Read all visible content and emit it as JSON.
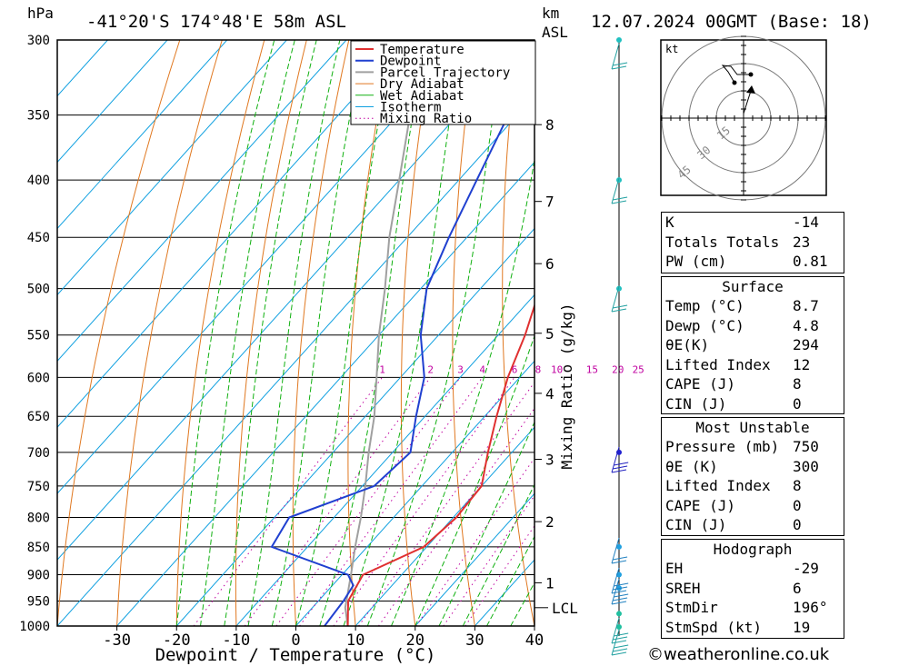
{
  "header": {
    "hpa_unit": "hPa",
    "location": "-41°20'S 174°48'E 58m ASL",
    "km_unit": "km",
    "asl_unit": "ASL",
    "datetime": "12.07.2024 00GMT (Base: 18)"
  },
  "colors": {
    "temperature": "#e03030",
    "dewpoint": "#2040d0",
    "parcel": "#a0a0a0",
    "dry_adiabat": "#e07820",
    "wet_adiabat": "#10b010",
    "isotherm": "#10a0e0",
    "mixing_ratio": "#c000a0"
  },
  "chart_data": {
    "type": "line",
    "xlabel": "Dewpoint / Temperature (°C)",
    "ylabel_left": "hPa",
    "ylabel_right": "Mixing Ratio (g/kg)",
    "xlim": [
      -40,
      40
    ],
    "x_ticks": [
      "-30",
      "-20",
      "-10",
      "0",
      "10",
      "20",
      "30",
      "40"
    ],
    "x_tick_values": [
      -30,
      -20,
      -10,
      0,
      10,
      20,
      30,
      40
    ],
    "pressure_levels": [
      300,
      350,
      400,
      450,
      500,
      550,
      600,
      650,
      700,
      750,
      800,
      850,
      900,
      950,
      1000
    ],
    "pressure_labels": [
      "300",
      "350",
      "400",
      "450",
      "500",
      "550",
      "600",
      "650",
      "700",
      "750",
      "800",
      "850",
      "900",
      "950",
      "1000"
    ],
    "km_ticks": [
      {
        "label": "8",
        "p": 357
      },
      {
        "label": "7",
        "p": 418
      },
      {
        "label": "6",
        "p": 475
      },
      {
        "label": "5",
        "p": 548
      },
      {
        "label": "4",
        "p": 620
      },
      {
        "label": "3",
        "p": 710
      },
      {
        "label": "2",
        "p": 807
      },
      {
        "label": "1",
        "p": 915
      }
    ],
    "lcl": {
      "label": "LCL",
      "p": 963
    },
    "mixing_ratio_labels": [
      "1",
      "2",
      "3",
      "4",
      "6",
      "8",
      "10",
      "15",
      "20",
      "25"
    ],
    "mixing_ratio_values": [
      1,
      2,
      3,
      4,
      6,
      8,
      10,
      15,
      20,
      25
    ],
    "legend": [
      "Temperature",
      "Dewpoint",
      "Parcel Trajectory",
      "Dry Adiabat",
      "Wet Adiabat",
      "Isotherm",
      "Mixing Ratio"
    ],
    "legend_position": "top-right",
    "series": [
      {
        "name": "Temperature",
        "points": [
          [
            1000,
            8.7
          ],
          [
            950,
            5
          ],
          [
            900,
            3.5
          ],
          [
            850,
            9.5
          ],
          [
            800,
            10.5
          ],
          [
            750,
            10
          ],
          [
            700,
            6
          ],
          [
            650,
            2
          ],
          [
            600,
            -2
          ],
          [
            550,
            -5.5
          ],
          [
            500,
            -10
          ],
          [
            450,
            -15.5
          ],
          [
            400,
            -21.5
          ],
          [
            350,
            -28
          ],
          [
            300,
            -34.5
          ]
        ]
      },
      {
        "name": "Dewpoint",
        "points": [
          [
            1000,
            4.8
          ],
          [
            950,
            4.2
          ],
          [
            920,
            3.5
          ],
          [
            900,
            1
          ],
          [
            850,
            -16
          ],
          [
            800,
            -17.5
          ],
          [
            750,
            -8
          ],
          [
            700,
            -7
          ],
          [
            650,
            -11.5
          ],
          [
            600,
            -16
          ],
          [
            550,
            -23
          ],
          [
            500,
            -29
          ],
          [
            450,
            -33
          ],
          [
            400,
            -37
          ],
          [
            350,
            -41.5
          ],
          [
            300,
            -46
          ]
        ]
      },
      {
        "name": "Parcel Trajectory",
        "points": [
          [
            1000,
            8.7
          ],
          [
            963,
            5.5
          ],
          [
            900,
            1.5
          ],
          [
            850,
            -2
          ],
          [
            800,
            -5.5
          ],
          [
            750,
            -9.5
          ],
          [
            700,
            -14
          ],
          [
            650,
            -18.5
          ],
          [
            600,
            -24
          ],
          [
            550,
            -30
          ],
          [
            500,
            -36
          ],
          [
            450,
            -43
          ],
          [
            400,
            -50
          ],
          [
            350,
            -58
          ],
          [
            300,
            -66
          ]
        ]
      }
    ]
  },
  "hodograph": {
    "unit": "kt",
    "ring_labels": [
      "15",
      "30",
      "45"
    ]
  },
  "indices": {
    "k_label": "K",
    "k_value": "-14",
    "tt_label": "Totals Totals",
    "tt_value": "23",
    "pw_label": "PW (cm)",
    "pw_value": "0.81"
  },
  "surface": {
    "title": "Surface",
    "rows": [
      {
        "label": "Temp (°C)",
        "value": "8.7"
      },
      {
        "label": "Dewp (°C)",
        "value": "4.8"
      },
      {
        "label": "θE(K)",
        "value": "294"
      },
      {
        "label": "Lifted Index",
        "value": "12"
      },
      {
        "label": "CAPE (J)",
        "value": "8"
      },
      {
        "label": "CIN (J)",
        "value": "0"
      }
    ]
  },
  "most_unstable": {
    "title": "Most Unstable",
    "rows": [
      {
        "label": "Pressure (mb)",
        "value": "750"
      },
      {
        "label": "θE (K)",
        "value": "300"
      },
      {
        "label": "Lifted Index",
        "value": "8"
      },
      {
        "label": "CAPE (J)",
        "value": "0"
      },
      {
        "label": "CIN (J)",
        "value": "0"
      }
    ]
  },
  "hodograph_table": {
    "title": "Hodograph",
    "rows": [
      {
        "label": "EH",
        "value": "-29"
      },
      {
        "label": "SREH",
        "value": "6"
      },
      {
        "label": "StmDir",
        "value": "196°"
      },
      {
        "label": "StmSpd (kt)",
        "value": "19"
      }
    ]
  },
  "credit": "©weatheronline.co.uk"
}
